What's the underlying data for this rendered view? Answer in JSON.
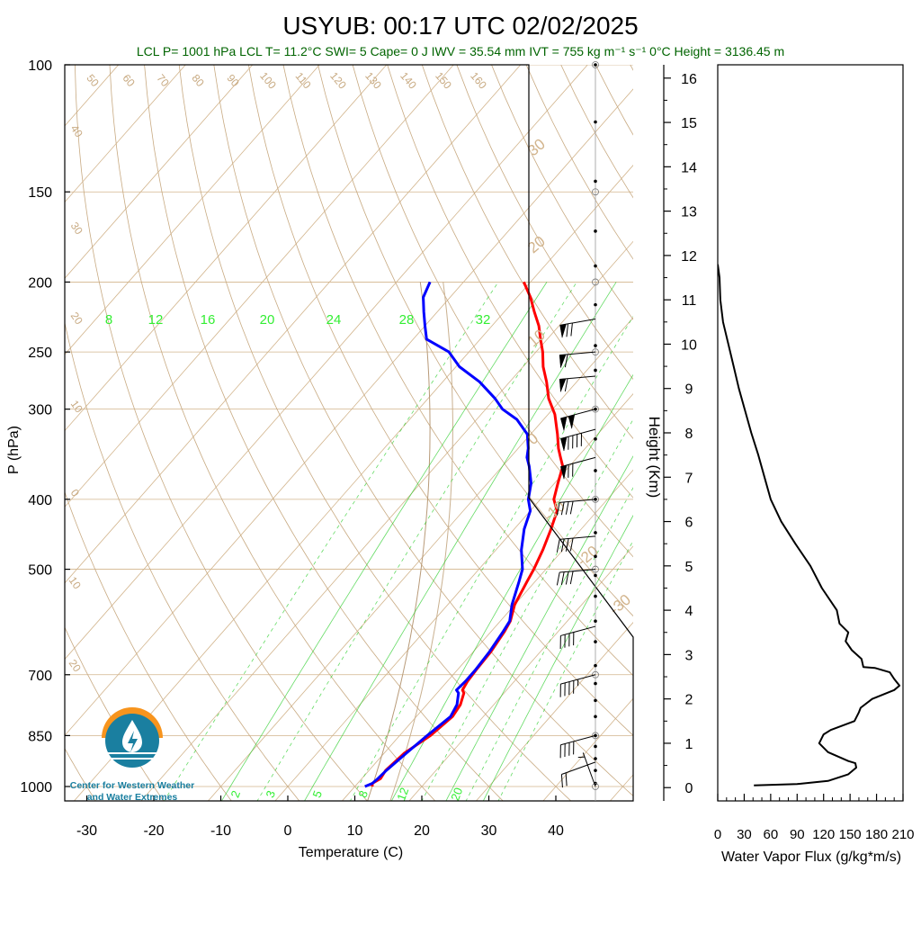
{
  "title": "USYUB: 00:17 UTC 02/02/2025",
  "summary_line": "LCL P= 1001 hPa  LCL T= 11.2°C  SWI= 5  Cape= 0 J  IWV = 35.54 mm  IVT = 755 kg m⁻¹ s⁻¹  0°C Height = 3136.45 m",
  "colors": {
    "summary_text": "#006400",
    "temperature": "#ff0000",
    "dewpoint": "#0000ff",
    "dry_adiabat": "#c8aa82",
    "isotherm": "#d2b48c",
    "mixing_ratio": "#22cc22",
    "mixing_label": "#33ee33",
    "flux_line": "#000000"
  },
  "logo": {
    "line1": "Center for Western Weather",
    "line2": "and Water Extremes",
    "sun_color": "#f7941d",
    "water_color": "#1a7fa0"
  },
  "chart_data": [
    {
      "type": "line",
      "name": "skew-t",
      "xlabel": "Temperature (C)",
      "ylabel": "P (hPa)",
      "x_ticks": [
        -30,
        -20,
        -10,
        0,
        10,
        20,
        30,
        40
      ],
      "y_ticks": [
        100,
        150,
        200,
        250,
        300,
        400,
        500,
        700,
        850,
        1000
      ],
      "xlim": [
        -34,
        48
      ],
      "ylim": [
        1050,
        100
      ],
      "y_scale": "log",
      "skew_isotherm_labels": [
        "30",
        "20",
        "10",
        "0",
        "-10",
        "-20",
        "-30"
      ],
      "left_isotherm_labels": [
        "40",
        "30",
        "20",
        "10",
        "0",
        "10",
        "20"
      ],
      "dry_adiabat_labels": [
        "50",
        "60",
        "70",
        "80",
        "90",
        "100",
        "110",
        "120",
        "130",
        "140",
        "150",
        "160"
      ],
      "mixing_ratio_labels_upper": [
        "8",
        "12",
        "16",
        "20",
        "24",
        "28",
        "32"
      ],
      "mixing_ratio_labels_lower": [
        "2",
        "3",
        "5",
        "8",
        "12",
        "20"
      ],
      "series": [
        {
          "name": "Temperature",
          "points": [
            [
              12.6,
              1000
            ],
            [
              12.2,
              990
            ],
            [
              12.8,
              975
            ],
            [
              12.5,
              950
            ],
            [
              13.0,
              900
            ],
            [
              14.6,
              850
            ],
            [
              15.4,
              800
            ],
            [
              15.0,
              770
            ],
            [
              14.0,
              742
            ],
            [
              13.4,
              735
            ],
            [
              13.0,
              715
            ],
            [
              12.8,
              690
            ],
            [
              12.6,
              650
            ],
            [
              12.0,
              610
            ],
            [
              11.5,
              590
            ],
            [
              10.0,
              560
            ],
            [
              8.8,
              520
            ],
            [
              8.2,
              500
            ],
            [
              7.0,
              470
            ],
            [
              5.5,
              440
            ],
            [
              4.0,
              415
            ],
            [
              2.0,
              400
            ],
            [
              0.5,
              380
            ],
            [
              -1.0,
              360
            ],
            [
              -2.5,
              350
            ],
            [
              -4.0,
              340
            ],
            [
              -6.0,
              325
            ],
            [
              -9.0,
              305
            ],
            [
              -12.0,
              290
            ],
            [
              -14.5,
              275
            ],
            [
              -17.0,
              262
            ],
            [
              -19.0,
              250
            ],
            [
              -21.0,
              240
            ],
            [
              -23.0,
              230
            ],
            [
              -25.5,
              220
            ],
            [
              -28.0,
              210
            ],
            [
              -31.0,
              200
            ]
          ]
        },
        {
          "name": "Dewpoint",
          "points": [
            [
              11.5,
              1000
            ],
            [
              12.2,
              990
            ],
            [
              12.4,
              975
            ],
            [
              12.6,
              950
            ],
            [
              13.3,
              900
            ],
            [
              14.1,
              850
            ],
            [
              15.1,
              800
            ],
            [
              14.5,
              770
            ],
            [
              13.2,
              742
            ],
            [
              12.5,
              735
            ],
            [
              12.7,
              715
            ],
            [
              12.7,
              690
            ],
            [
              12.4,
              650
            ],
            [
              11.8,
              610
            ],
            [
              11.4,
              590
            ],
            [
              9.6,
              560
            ],
            [
              7.6,
              520
            ],
            [
              6.5,
              500
            ],
            [
              3.8,
              470
            ],
            [
              1.5,
              440
            ],
            [
              0.0,
              415
            ],
            [
              -1.8,
              400
            ],
            [
              -3.5,
              380
            ],
            [
              -6.0,
              360
            ],
            [
              -7.5,
              350
            ],
            [
              -8.5,
              340
            ],
            [
              -10.5,
              325
            ],
            [
              -14.0,
              310
            ],
            [
              -17.5,
              300
            ],
            [
              -20.0,
              290
            ],
            [
              -24.5,
              275
            ],
            [
              -29.5,
              262
            ],
            [
              -33.0,
              250
            ],
            [
              -38.0,
              240
            ],
            [
              -40.0,
              230
            ],
            [
              -42.0,
              220
            ],
            [
              -44.0,
              210
            ],
            [
              -45.0,
              200
            ]
          ]
        }
      ]
    },
    {
      "type": "line",
      "name": "water-vapor-flux",
      "xlabel": "Water Vapor Flux (g/kg*m/s)",
      "ylabel": "Height (Km)",
      "x_ticks": [
        0,
        30,
        60,
        90,
        120,
        150,
        180,
        210
      ],
      "y_ticks": [
        0,
        1,
        2,
        3,
        4,
        5,
        6,
        7,
        8,
        9,
        10,
        11,
        12,
        13,
        14,
        15,
        16
      ],
      "xlim": [
        0,
        210
      ],
      "ylim": [
        -0.3,
        16.3
      ],
      "series": [
        {
          "name": "Water Vapor Flux",
          "points": [
            [
              41,
              0.05
            ],
            [
              90,
              0.08
            ],
            [
              125,
              0.15
            ],
            [
              148,
              0.3
            ],
            [
              157,
              0.45
            ],
            [
              156,
              0.55
            ],
            [
              148,
              0.6
            ],
            [
              125,
              0.8
            ],
            [
              115,
              1.0
            ],
            [
              120,
              1.2
            ],
            [
              128,
              1.3
            ],
            [
              155,
              1.5
            ],
            [
              160,
              1.7
            ],
            [
              162,
              1.8
            ],
            [
              175,
              2.0
            ],
            [
              200,
              2.2
            ],
            [
              206,
              2.3
            ],
            [
              200,
              2.45
            ],
            [
              195,
              2.6
            ],
            [
              178,
              2.7
            ],
            [
              165,
              2.72
            ],
            [
              163,
              2.9
            ],
            [
              152,
              3.1
            ],
            [
              145,
              3.3
            ],
            [
              148,
              3.5
            ],
            [
              138,
              3.7
            ],
            [
              135,
              4.0
            ],
            [
              118,
              4.5
            ],
            [
              105,
              5.0
            ],
            [
              88,
              5.5
            ],
            [
              72,
              6.0
            ],
            [
              60,
              6.5
            ],
            [
              53,
              7.0
            ],
            [
              46,
              7.5
            ],
            [
              38,
              8.0
            ],
            [
              31,
              8.5
            ],
            [
              24,
              9.0
            ],
            [
              18,
              9.5
            ],
            [
              12,
              10.0
            ],
            [
              6,
              10.5
            ],
            [
              3,
              11.0
            ],
            [
              2,
              11.5
            ],
            [
              0,
              11.8
            ]
          ]
        }
      ]
    }
  ],
  "wind_barbs": [
    {
      "p": 1000,
      "dir": 340,
      "kt": 5
    },
    {
      "p": 925,
      "dir": 250,
      "kt": 20
    },
    {
      "p": 850,
      "dir": 255,
      "kt": 40
    },
    {
      "p": 700,
      "dir": 255,
      "kt": 45
    },
    {
      "p": 600,
      "dir": 255,
      "kt": 40
    },
    {
      "p": 500,
      "dir": 265,
      "kt": 40
    },
    {
      "p": 450,
      "dir": 265,
      "kt": 40
    },
    {
      "p": 400,
      "dir": 265,
      "kt": 40
    },
    {
      "p": 350,
      "dir": 255,
      "kt": 70
    },
    {
      "p": 320,
      "dir": 255,
      "kt": 90
    },
    {
      "p": 300,
      "dir": 255,
      "kt": 100
    },
    {
      "p": 270,
      "dir": 265,
      "kt": 60
    },
    {
      "p": 250,
      "dir": 265,
      "kt": 60
    },
    {
      "p": 225,
      "dir": 260,
      "kt": 70
    }
  ]
}
